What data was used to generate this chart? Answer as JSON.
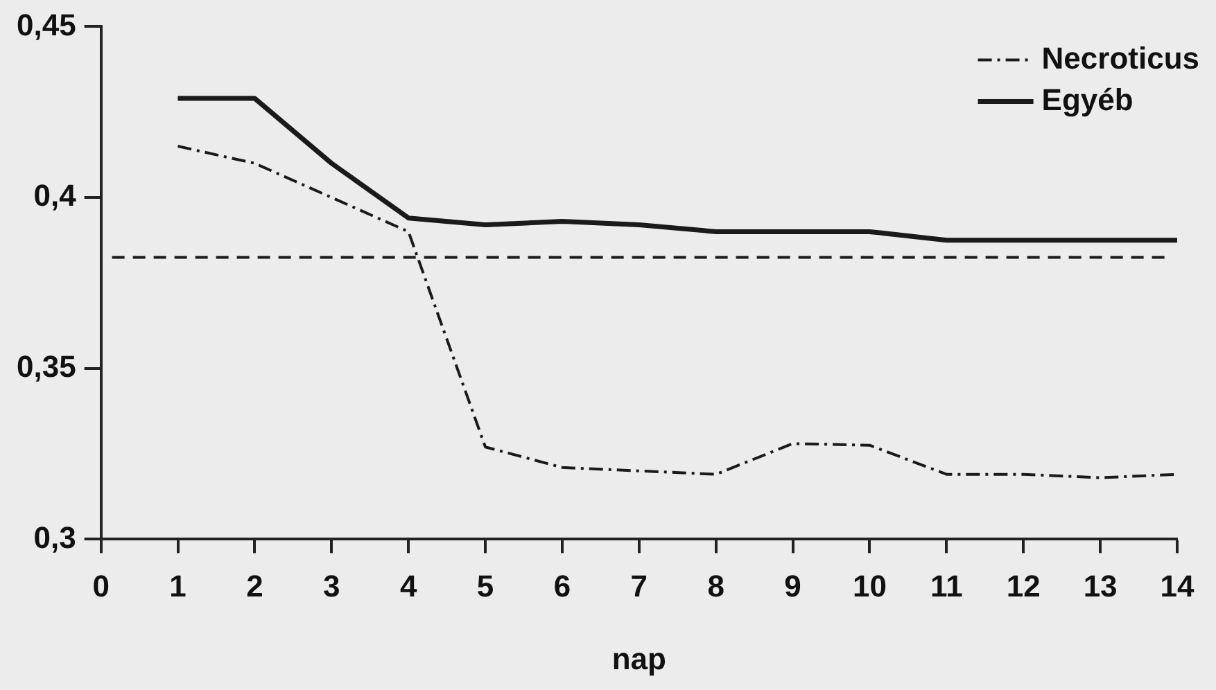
{
  "chart_data": {
    "type": "line",
    "xlabel": "nap",
    "x": [
      1,
      2,
      3,
      4,
      5,
      6,
      7,
      8,
      9,
      10,
      11,
      12,
      13,
      14
    ],
    "series": [
      {
        "name": "Necroticus",
        "color": "#1a1a1a",
        "line_style": "dashed",
        "values": [
          0.415,
          0.41,
          0.4,
          0.39,
          0.327,
          0.321,
          0.32,
          0.319,
          0.328,
          0.3275,
          0.319,
          0.319,
          0.318,
          0.319
        ]
      },
      {
        "name": "Egyéb",
        "color": "#1a1a1a",
        "line_style": "solid",
        "values": [
          0.429,
          0.429,
          0.41,
          0.394,
          0.392,
          0.393,
          0.392,
          0.39,
          0.39,
          0.39,
          0.3875,
          0.3875,
          0.3875,
          0.3875
        ]
      }
    ],
    "xlim": [
      0,
      14
    ],
    "xticks": [
      0,
      1,
      2,
      3,
      4,
      5,
      6,
      7,
      8,
      9,
      10,
      11,
      12,
      13,
      14
    ],
    "ylim": [
      0.3,
      0.45
    ],
    "yticks": [
      {
        "value": 0.3,
        "label": "0,3"
      },
      {
        "value": 0.35,
        "label": "0,35"
      },
      {
        "value": 0.4,
        "label": "0,4"
      },
      {
        "value": 0.45,
        "label": "0,45"
      }
    ],
    "ref_lines": [
      {
        "axis": "y",
        "value": 0.3825,
        "color": "#1a1a1a",
        "line_style": "dashed"
      }
    ],
    "grid": false,
    "legend": "top right",
    "marker": "none"
  }
}
